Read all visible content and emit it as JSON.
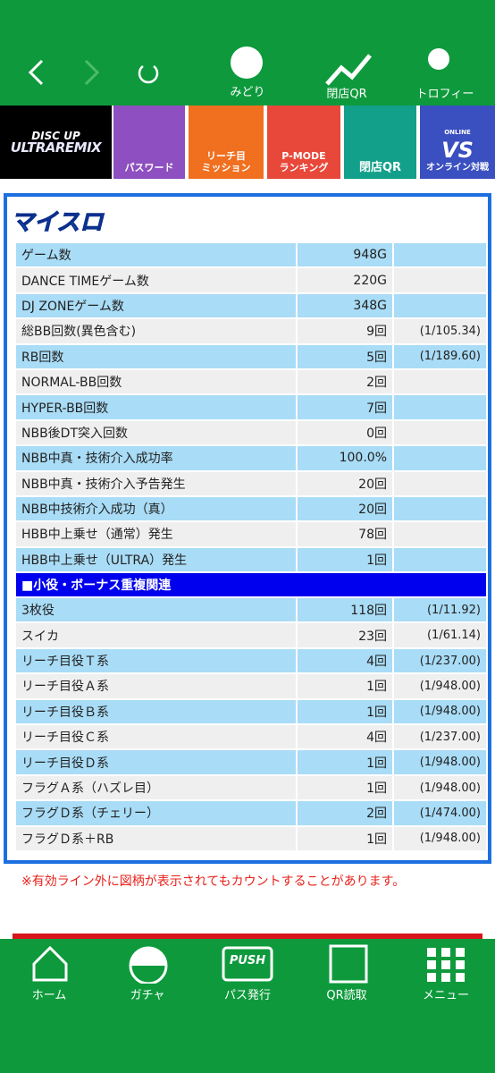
{
  "nav": {
    "items": [
      "みどり",
      "閉店QR",
      "トロフィー"
    ]
  },
  "menu": {
    "logo_top": "DISC UP",
    "logo_bottom": "ULTRAREMIX",
    "items": [
      {
        "lines": [
          "パスワード"
        ]
      },
      {
        "lines": [
          "リーチ目",
          "ミッション"
        ]
      },
      {
        "lines": [
          "P-MODE",
          "ランキング"
        ]
      },
      {
        "lines": [
          "閉店QR"
        ]
      },
      {
        "badge": [
          "ONLINE",
          "VS"
        ],
        "lines": [
          "オンライン対戦"
        ]
      }
    ]
  },
  "card": {
    "logo": "マイスロ"
  },
  "table": {
    "rows": [
      [
        "ゲーム数",
        "948G"
      ],
      [
        "DANCE TIMEゲーム数",
        "220G"
      ],
      [
        "DJ ZONEゲーム数",
        "348G"
      ],
      [
        "総BB回数(異色含む)",
        "9回",
        "(1/105.34)"
      ],
      [
        "RB回数",
        "5回",
        "(1/189.60)"
      ],
      [
        "NORMAL-BB回数",
        "2回"
      ],
      [
        "HYPER-BB回数",
        "7回"
      ],
      [
        "NBB後DT突入回数",
        "0回"
      ],
      [
        "NBB中真・技術介入成功率",
        "100.0%"
      ],
      [
        "NBB中真・技術介入予告発生",
        "20回"
      ],
      [
        "NBB中技術介入成功（真）",
        "20回"
      ],
      [
        "HBB中上乗せ（通常）発生",
        "78回"
      ],
      [
        "HBB中上乗せ（ULTRA）発生",
        "1回"
      ]
    ]
  },
  "section": {
    "title": "■小役・ボーナス重複関連",
    "rows": [
      [
        "3枚役",
        "118回",
        "(1/11.92)"
      ],
      [
        "スイカ",
        "23回",
        "(1/61.14)"
      ],
      [
        "リーチ目役Ｔ系",
        "4回",
        "(1/237.00)"
      ],
      [
        "リーチ目役Ａ系",
        "1回",
        "(1/948.00)"
      ],
      [
        "リーチ目役Ｂ系",
        "1回",
        "(1/948.00)"
      ],
      [
        "リーチ目役Ｃ系",
        "4回",
        "(1/237.00)"
      ],
      [
        "リーチ目役Ｄ系",
        "1回",
        "(1/948.00)"
      ],
      [
        "フラグＡ系（ハズレ目）",
        "1回",
        "(1/948.00)"
      ],
      [
        "フラグＤ系（チェリー）",
        "2回",
        "(1/474.00)"
      ],
      [
        "フラグＤ系＋RB",
        "1回",
        "(1/948.00)"
      ]
    ]
  },
  "note": "※有効ライン外に図柄が表示されてもカウントすることがあります。",
  "bottom": {
    "push": "PUSH",
    "items": [
      "ホーム",
      "ガチャ",
      "パス発行",
      "QR読取",
      "メニュー"
    ]
  }
}
